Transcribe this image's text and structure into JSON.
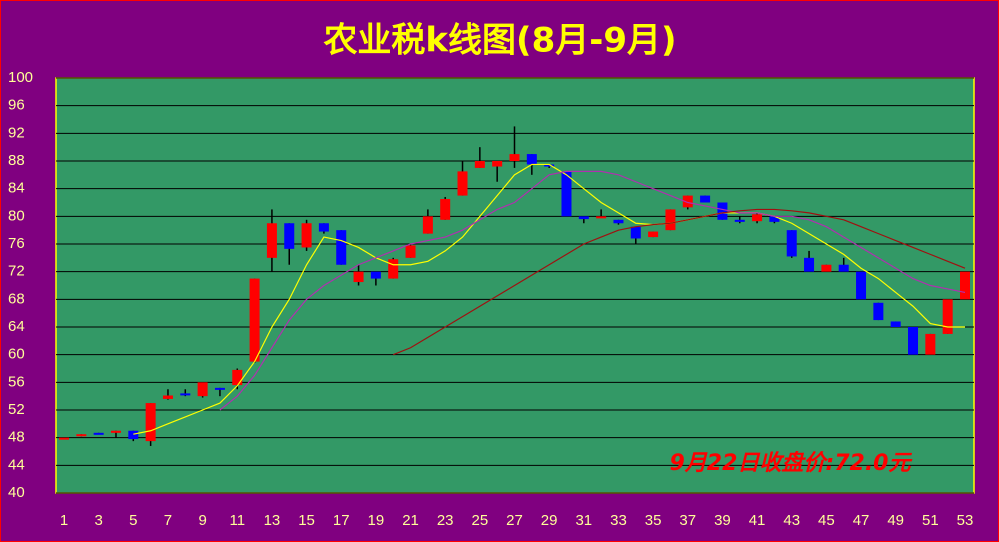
{
  "chart_data": {
    "type": "candlestick",
    "title": "农业税k线图(8月-9月)",
    "annotation": "9月22日收盘价:72.0元",
    "categories": [
      "1",
      null,
      "3",
      null,
      "5",
      null,
      "7",
      null,
      "9",
      null,
      "11",
      null,
      "13",
      null,
      "15",
      null,
      "17",
      null,
      "19",
      null,
      "21",
      null,
      "23",
      null,
      "25",
      null,
      "27",
      null,
      "29",
      null,
      "31",
      null,
      "33",
      null,
      "35",
      null,
      "37",
      null,
      "39",
      null,
      "41",
      null,
      "43",
      null,
      "45",
      null,
      "47",
      null,
      "49",
      null,
      "51",
      null,
      "53"
    ],
    "open": [
      48,
      48.2,
      48.7,
      48.7,
      49,
      47.5,
      53.6,
      54.4,
      54,
      55.2,
      55.6,
      59,
      74,
      79,
      75.5,
      79,
      78,
      70.5,
      72,
      71,
      74,
      77.5,
      79.5,
      83,
      87,
      87.2,
      88,
      89,
      87.5,
      86.5,
      80,
      80,
      79.5,
      78.5,
      77,
      78,
      81.3,
      83,
      82,
      79.5,
      79.3,
      80,
      78,
      74,
      72,
      73,
      72,
      67.5,
      64.8,
      64,
      60,
      63,
      68
    ],
    "high": [
      48,
      48.5,
      48.7,
      49,
      49,
      53,
      55,
      55,
      56,
      55.2,
      58,
      71,
      81,
      79,
      79.5,
      79,
      78,
      73,
      72,
      74,
      76,
      81,
      82.8,
      88,
      90,
      88,
      93,
      89,
      87.5,
      86.5,
      80,
      81,
      79.5,
      78.5,
      77.8,
      81,
      83,
      83,
      82,
      80,
      80.5,
      80,
      78,
      75,
      73,
      74,
      72,
      67.5,
      64.8,
      64,
      63,
      68,
      72
    ],
    "low": [
      48,
      48.2,
      48.6,
      48,
      47.5,
      46.8,
      53.5,
      54,
      53.8,
      54,
      55,
      58.8,
      72,
      73,
      75,
      77.5,
      73,
      70,
      70,
      71,
      74,
      77.5,
      79.5,
      83,
      87,
      85,
      87,
      86,
      87,
      80,
      79,
      80,
      78.8,
      76,
      77,
      78,
      81,
      82,
      79.5,
      79,
      79,
      79,
      74,
      72,
      72,
      72,
      68,
      65,
      64,
      60,
      60,
      63,
      68
    ],
    "close": [
      48,
      48.5,
      48.6,
      49,
      47.8,
      53,
      54.1,
      54.2,
      56,
      55,
      57.8,
      71,
      79,
      75.3,
      79,
      77.8,
      73,
      72,
      71,
      73.8,
      75.8,
      80,
      82.5,
      86.5,
      88,
      88,
      89,
      87.5,
      87.2,
      80,
      79.6,
      80,
      79,
      76.8,
      77.8,
      81,
      83,
      82,
      79.5,
      79.2,
      80.3,
      79.2,
      74.2,
      72,
      73,
      72,
      68,
      65,
      64,
      60,
      63,
      68,
      72
    ],
    "up_color": "#ff0000",
    "down_color": "#0000ff",
    "moving_averages": [
      {
        "color": "#ffff00",
        "values": [
          null,
          null,
          null,
          null,
          48.5,
          49,
          50,
          51,
          52,
          53,
          55.5,
          59,
          64,
          68,
          73,
          77,
          76.5,
          75.5,
          74,
          73,
          73,
          73.5,
          75,
          77,
          80,
          83,
          86,
          87.5,
          87.5,
          86,
          84,
          82,
          80.5,
          79,
          78.8,
          79,
          79.5,
          80,
          80.5,
          80.5,
          80.5,
          80,
          79,
          77.5,
          76,
          74.5,
          72.5,
          71,
          69,
          67,
          64.5,
          64,
          64
        ]
      },
      {
        "color": "#b030b0",
        "values": [
          null,
          null,
          null,
          null,
          null,
          null,
          null,
          null,
          null,
          52,
          54,
          57,
          61,
          65,
          68,
          70,
          71.5,
          73,
          74,
          75,
          76,
          76.5,
          77,
          78,
          79.5,
          81,
          82,
          84,
          86,
          86.5,
          86.5,
          86.5,
          86,
          85,
          84,
          83,
          82,
          81.5,
          81,
          80.5,
          80.5,
          80,
          80,
          79.5,
          78.5,
          77,
          75.5,
          74,
          72.5,
          71,
          70,
          69.5,
          69
        ]
      },
      {
        "color": "#a01010",
        "values": [
          null,
          null,
          null,
          null,
          null,
          null,
          null,
          null,
          null,
          null,
          null,
          null,
          null,
          null,
          null,
          null,
          null,
          null,
          null,
          60,
          61,
          62.5,
          64,
          65.5,
          67,
          68.5,
          70,
          71.5,
          73,
          74.5,
          76,
          77,
          78,
          78.5,
          78.8,
          79,
          79.5,
          80,
          80.5,
          80.8,
          81,
          81,
          80.8,
          80.5,
          80,
          79.5,
          78.5,
          77.5,
          76.5,
          75.5,
          74.5,
          73.5,
          72.5
        ]
      }
    ],
    "ylim": [
      40,
      100
    ],
    "yticks": [
      40,
      44,
      48,
      52,
      56,
      60,
      64,
      68,
      72,
      76,
      80,
      84,
      88,
      92,
      96,
      100
    ],
    "grid": true,
    "plot_color": "#339966"
  }
}
